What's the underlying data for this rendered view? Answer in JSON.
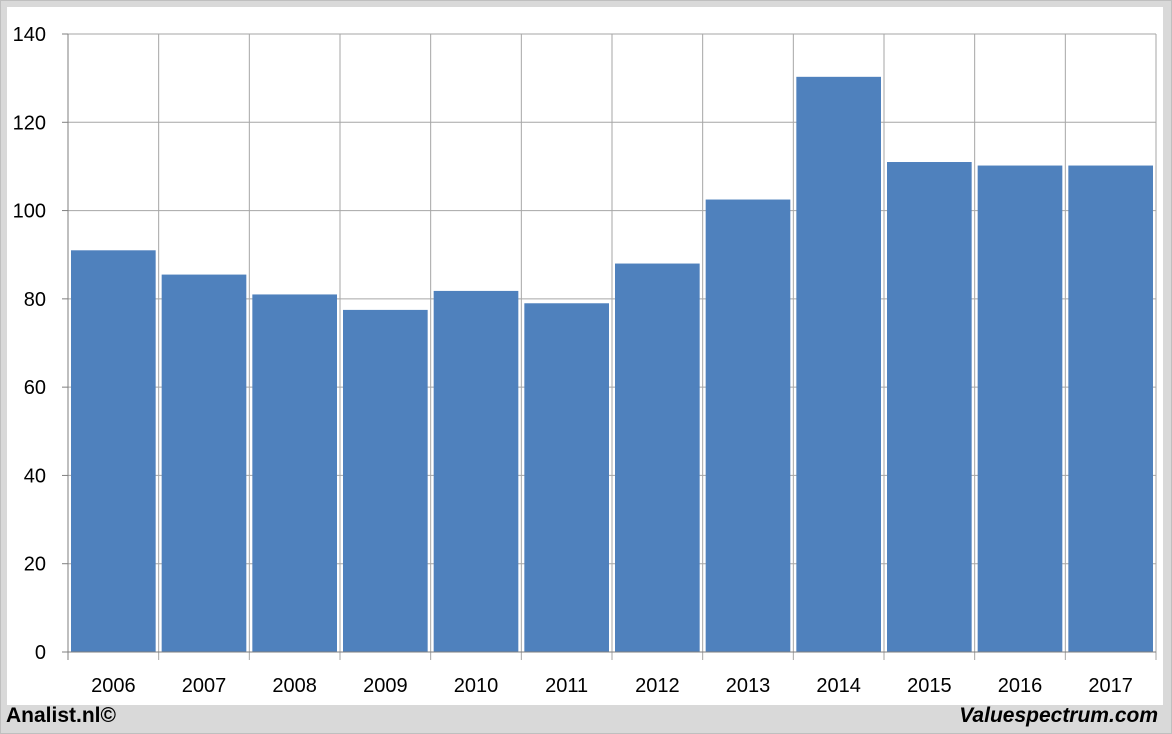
{
  "chart_data": {
    "type": "bar",
    "title": "",
    "xlabel": "",
    "ylabel": "",
    "categories": [
      "2006",
      "2007",
      "2008",
      "2009",
      "2010",
      "2011",
      "2012",
      "2013",
      "2014",
      "2015",
      "2016",
      "2017"
    ],
    "values": [
      91,
      85.5,
      81,
      77.5,
      81.8,
      79,
      88,
      102.5,
      130.3,
      111,
      110.2,
      110.2
    ],
    "ylim": [
      0,
      140
    ],
    "yticks": [
      0,
      20,
      40,
      60,
      80,
      100,
      120,
      140
    ],
    "ytick_labels": [
      "0",
      "20",
      "40",
      "60",
      "80",
      "100",
      "120",
      "140"
    ],
    "grid": true,
    "legend": "none",
    "bar_color": "#4f81bd",
    "grid_color": "#a6a6a6"
  },
  "footer": {
    "left": "Analist.nl©",
    "right": "Valuespectrum.com"
  }
}
